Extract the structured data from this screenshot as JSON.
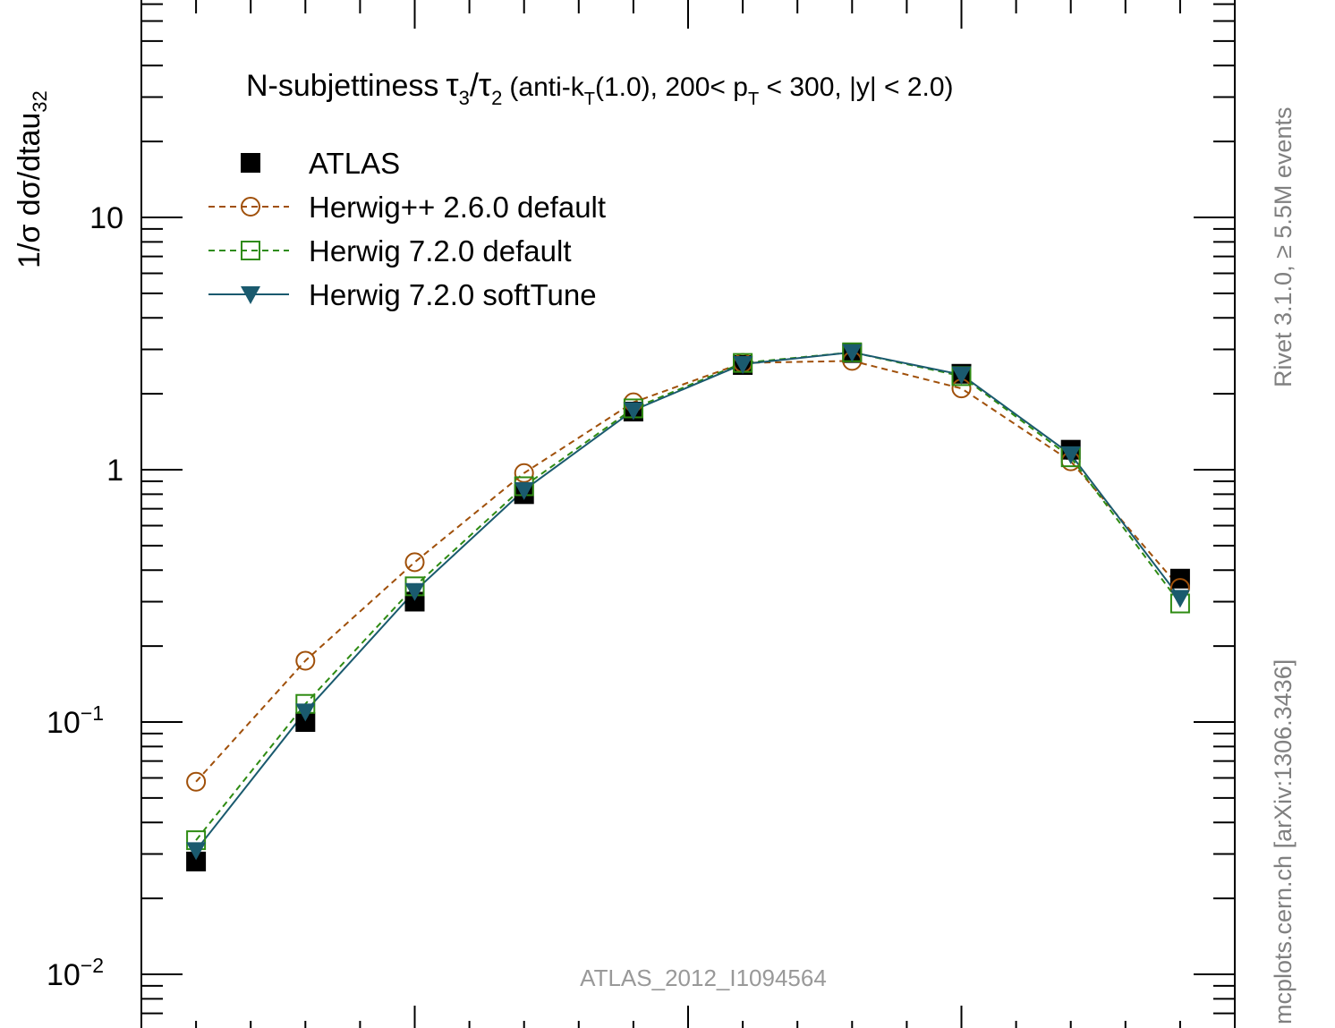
{
  "chart_data": {
    "type": "line",
    "title": "N-subjettiness",
    "title_tau_ratio": {
      "num": "τ",
      "num_sub": "3",
      "den": "τ",
      "den_sub": "2"
    },
    "title_detail": {
      "prefix": "(anti-k",
      "k_sub": "T",
      "mid": "(1.0), 200< p",
      "p_sub": "T",
      "suffix": " < 300, |y| < 2.0)"
    },
    "ylabel": "1/σ dσ/dtau",
    "ylabel_sub": "32",
    "xlabel": "",
    "yscale": "log",
    "ylim": [
      0.007,
      60
    ],
    "xlim": [
      0,
      1
    ],
    "ytick_labels": [
      {
        "base": "10",
        "exp": "−2",
        "value": 0.01
      },
      {
        "base": "10",
        "exp": "−1",
        "value": 0.1
      },
      {
        "base": "1",
        "exp": "",
        "value": 1
      },
      {
        "base": "10",
        "exp": "",
        "value": 10
      }
    ],
    "legend_placement": "top-left",
    "annotation": "ATLAS_2012_I1094564",
    "x": [
      0.05,
      0.15,
      0.25,
      0.35,
      0.45,
      0.55,
      0.65,
      0.75,
      0.85,
      0.95
    ],
    "series": [
      {
        "name": "ATLAS",
        "color": "#000000",
        "marker": "filled-square",
        "line": "none",
        "values": [
          0.028,
          0.1,
          0.3,
          0.8,
          1.7,
          2.6,
          2.9,
          2.4,
          1.2,
          0.37
        ]
      },
      {
        "name": "Herwig++ 2.6.0 default",
        "color": "#a0500a",
        "marker": "open-circle",
        "line": "dashed",
        "values": [
          0.058,
          0.175,
          0.43,
          0.97,
          1.85,
          2.65,
          2.7,
          2.1,
          1.08,
          0.34
        ]
      },
      {
        "name": "Herwig 7.2.0 default",
        "color": "#2e8b12",
        "marker": "open-square",
        "line": "dashed",
        "values": [
          0.034,
          0.118,
          0.345,
          0.86,
          1.75,
          2.65,
          2.92,
          2.35,
          1.12,
          0.295
        ]
      },
      {
        "name": "Herwig 7.2.0 softTune",
        "color": "#1a5a6e",
        "marker": "filled-triangle-down",
        "line": "solid",
        "values": [
          0.031,
          0.11,
          0.33,
          0.83,
          1.72,
          2.62,
          2.92,
          2.38,
          1.15,
          0.31
        ]
      }
    ]
  },
  "side_labels": {
    "right_top": "Rivet 3.1.0, ≥ 5.5M events",
    "right_bottom": "mcplots.cern.ch [arXiv:1306.3436]"
  }
}
